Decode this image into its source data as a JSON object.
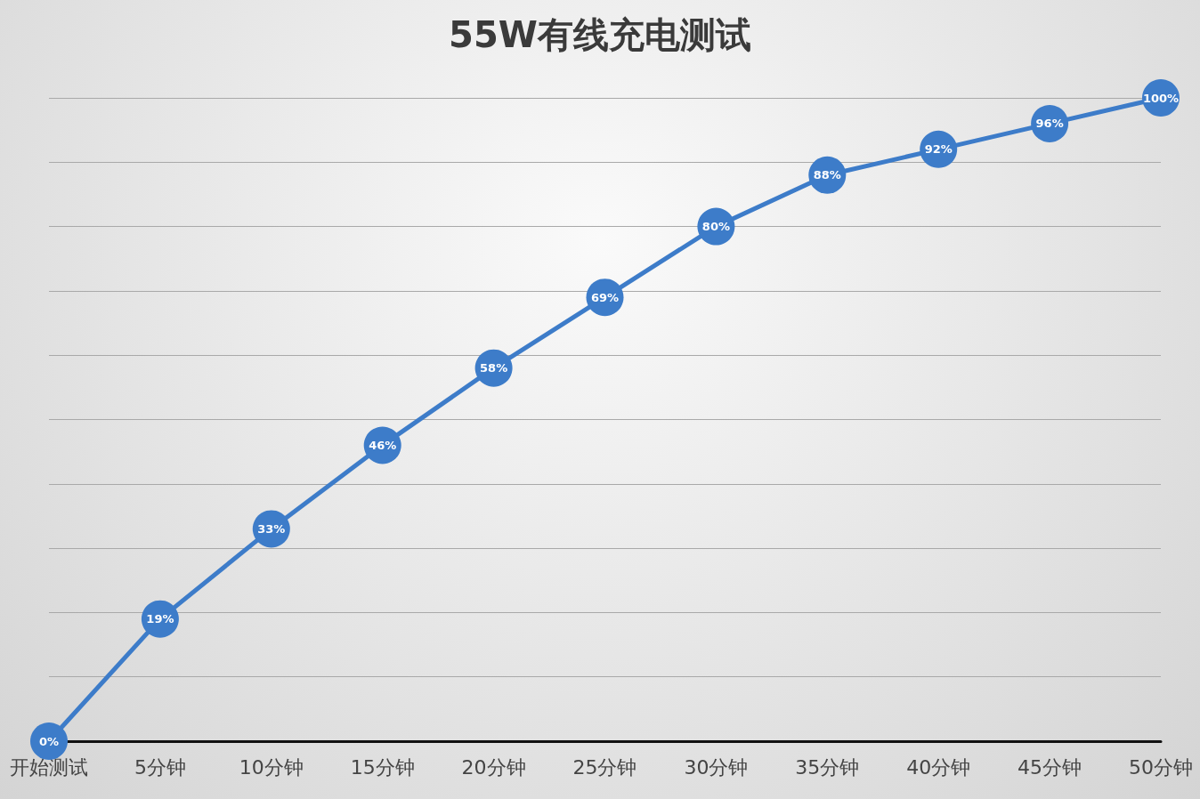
{
  "chart_data": {
    "type": "line",
    "title": "55W有线充电测试",
    "categories": [
      "开始测试",
      "5分钟",
      "10分钟",
      "15分钟",
      "20分钟",
      "25分钟",
      "30分钟",
      "35分钟",
      "40分钟",
      "45分钟",
      "50分钟"
    ],
    "series": [
      {
        "color": "#3d7cc9",
        "values": [
          0,
          19,
          33,
          46,
          58,
          69,
          80,
          88,
          92,
          96,
          100
        ],
        "value_labels": [
          "0%",
          "19%",
          "33%",
          "46%",
          "58%",
          "69%",
          "80%",
          "88%",
          "92%",
          "96%",
          "100%"
        ]
      }
    ],
    "tick_labels": "x",
    "grid": "y",
    "marker": "circle",
    "line_style": "solid"
  }
}
